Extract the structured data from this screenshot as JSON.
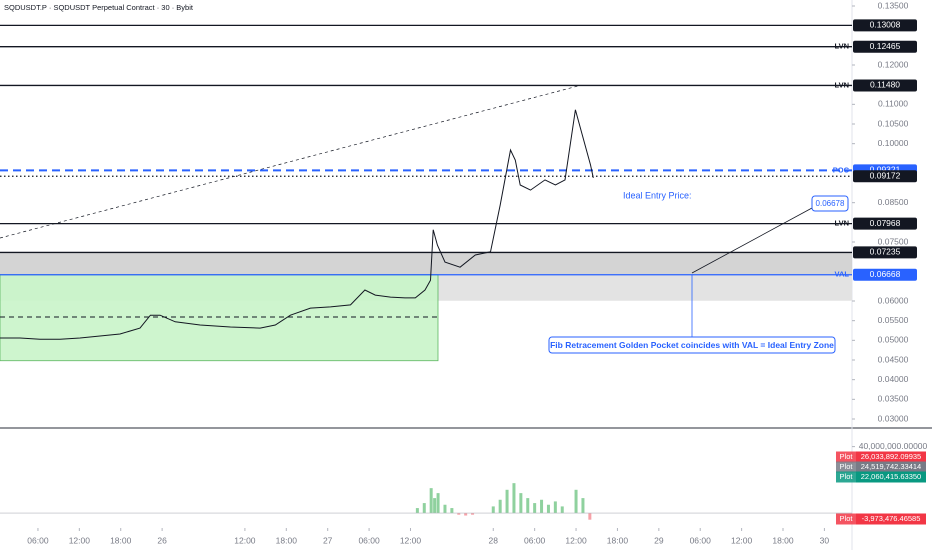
{
  "chart_data": {
    "type": "line",
    "title": "SQDUSDT.P · SQDUSDT Perpetual Contract · 30 · Bybit",
    "color": "#131722",
    "x": [
      0.5,
      3.4,
      6.3,
      9.2,
      12.1,
      15.0,
      17.9,
      20.8,
      22.3,
      23.7,
      25.9,
      29.5,
      33.9,
      38.2,
      40.4,
      42.6,
      45.5,
      48.4,
      51.3,
      53.4,
      54.9,
      57.1,
      59.2,
      60.7,
      62.1,
      62.9,
      63.3,
      63.9,
      65.0,
      67.2,
      69.4,
      71.6,
      73.0,
      74.5,
      75.2,
      75.9,
      77.4,
      79.5,
      81.0,
      82.4,
      83.9,
      84.9,
      86.1,
      86.5
    ],
    "values": [
      0.0506,
      0.0506,
      0.0503,
      0.0503,
      0.0506,
      0.0511,
      0.0516,
      0.0531,
      0.0564,
      0.0564,
      0.0547,
      0.0539,
      0.0534,
      0.0531,
      0.0539,
      0.0564,
      0.0582,
      0.0585,
      0.059,
      0.0628,
      0.0615,
      0.061,
      0.0608,
      0.0608,
      0.0628,
      0.0653,
      0.0781,
      0.0742,
      0.0699,
      0.0686,
      0.0717,
      0.0725,
      0.0844,
      0.0984,
      0.0958,
      0.0895,
      0.0882,
      0.0908,
      0.0895,
      0.0908,
      0.1086,
      0.1022,
      0.0946,
      0.0913
    ],
    "xlim": [
      0.5,
      124
    ],
    "xticks": [
      {
        "value": 6,
        "label": "06:00"
      },
      {
        "value": 12,
        "label": "12:00"
      },
      {
        "value": 18,
        "label": "18:00"
      },
      {
        "value": 24,
        "label": "26"
      },
      {
        "value": 36,
        "label": "12:00"
      },
      {
        "value": 42,
        "label": "18:00"
      },
      {
        "value": 48,
        "label": "27"
      },
      {
        "value": 54,
        "label": "06:00"
      },
      {
        "value": 60,
        "label": "12:00"
      },
      {
        "value": 72,
        "label": "28"
      },
      {
        "value": 78,
        "label": "06:00"
      },
      {
        "value": 84,
        "label": "12:00"
      },
      {
        "value": 90,
        "label": "18:00"
      },
      {
        "value": 96,
        "label": "29"
      },
      {
        "value": 102,
        "label": "06:00"
      },
      {
        "value": 108,
        "label": "12:00"
      },
      {
        "value": 114,
        "label": "18:00"
      },
      {
        "value": 120,
        "label": "30"
      }
    ],
    "ylim": [
      0.03,
      0.135
    ],
    "yticks": [
      {
        "value": 0.135,
        "label": "0.13500"
      },
      {
        "value": 0.12,
        "label": "0.12000"
      },
      {
        "value": 0.11,
        "label": "0.11000"
      },
      {
        "value": 0.105,
        "label": "0.10500"
      },
      {
        "value": 0.1,
        "label": "0.10000"
      },
      {
        "value": 0.085,
        "label": "0.08500"
      },
      {
        "value": 0.075,
        "label": "0.07500"
      },
      {
        "value": 0.06,
        "label": "0.06000"
      },
      {
        "value": 0.055,
        "label": "0.05500"
      },
      {
        "value": 0.05,
        "label": "0.05000"
      },
      {
        "value": 0.045,
        "label": "0.04500"
      },
      {
        "value": 0.04,
        "label": "0.04000"
      },
      {
        "value": 0.035,
        "label": "0.03500"
      },
      {
        "value": 0.03,
        "label": "0.03000"
      }
    ],
    "levels": [
      {
        "price": 0.13008,
        "color": "#131722",
        "style": "solid"
      },
      {
        "price": 0.12465,
        "tag": "LVN",
        "color": "#131722",
        "style": "solid"
      },
      {
        "price": {
          "value": 0.1148,
          "label": "0.11480"
        },
        "tag": "LVN",
        "color": "#131722",
        "style": "solid"
      },
      {
        "price": 0.09321,
        "tag": "POC",
        "color": "#2962ff",
        "style": "dashed"
      },
      {
        "price": 0.09172,
        "color": "#131722",
        "style": "dotted"
      },
      {
        "price": 0.07968,
        "tag": "LVN",
        "color": "#131722",
        "style": "solid"
      },
      {
        "price": 0.07235,
        "color": "#131722",
        "style": "solid"
      },
      {
        "price": 0.06668,
        "tag": "VAL",
        "color": "#2962ff",
        "style": "solid"
      }
    ],
    "annotations": {
      "entry_label": "Ideal Entry Price:",
      "entry_price": 0.06678,
      "callout": "Fib Retracement Golden Pocket coincides with VAL = Ideal Entry Zone"
    },
    "indicator": {
      "ylim": [
        -9000000,
        50000000
      ],
      "yticks": [
        {
          "value": 40000000,
          "label": "40,000,000.00000"
        }
      ],
      "x": [
        61,
        62,
        63,
        63.5,
        64,
        65,
        66,
        67,
        68,
        69,
        72,
        73,
        74,
        75,
        76,
        77,
        78,
        79,
        80,
        81,
        82,
        84,
        85,
        86
      ],
      "values": [
        3000000,
        6000000,
        15000000,
        9000000,
        12000000,
        5000000,
        3000000,
        -1000000,
        -1500000,
        -1000000,
        4000000,
        8000000,
        14000000,
        18000000,
        12000000,
        9000000,
        6000000,
        8000000,
        5000000,
        7000000,
        4000000,
        14000000,
        9000000,
        -4000000
      ],
      "plots": [
        {
          "name": "Plot",
          "value": {
            "value": 26033892.09935,
            "label": "26,033,892.09935"
          },
          "color": "#f23645"
        },
        {
          "name": "Plot",
          "value": {
            "value": 24519742.33414,
            "label": "24,519,742.33414"
          },
          "color": "#787b86"
        },
        {
          "name": "Plot",
          "value": {
            "value": 22060415.6335,
            "label": "22,060,415.63350"
          },
          "color": "#089981"
        },
        {
          "name": "Plot",
          "value": {
            "value": -3973476.46585,
            "label": "-3,973,476.46585"
          },
          "color": "#f23645"
        }
      ]
    }
  }
}
